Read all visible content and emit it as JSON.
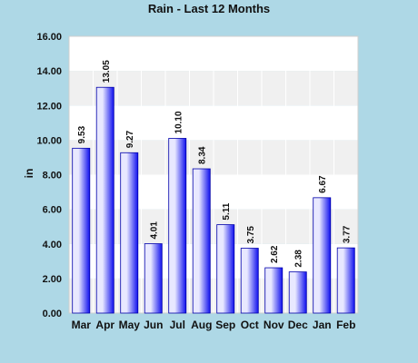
{
  "chart_data": {
    "type": "bar",
    "title": "Rain - Last 12 Months",
    "xlabel": "",
    "ylabel": "in",
    "ylim": [
      0,
      16
    ],
    "y_ticks": [
      "0.00",
      "2.00",
      "4.00",
      "6.00",
      "8.00",
      "10.00",
      "12.00",
      "14.00",
      "16.00"
    ],
    "categories": [
      "Mar",
      "Apr",
      "May",
      "Jun",
      "Jul",
      "Aug",
      "Sep",
      "Oct",
      "Nov",
      "Dec",
      "Jan",
      "Feb"
    ],
    "values": [
      9.53,
      13.05,
      9.27,
      4.01,
      10.1,
      8.34,
      5.11,
      3.75,
      2.62,
      2.38,
      6.67,
      3.77
    ],
    "value_labels": [
      "9.53",
      "13.05",
      "9.27",
      "4.01",
      "10.10",
      "8.34",
      "5.11",
      "3.75",
      "2.62",
      "2.38",
      "6.67",
      "3.77"
    ],
    "grid": true,
    "legend": "none",
    "colors": {
      "background": "#aed8e6",
      "plot_band_light": "#ffffff",
      "plot_band_dark": "#f0f0f0",
      "bar_dark": "#1010ee",
      "bar_light": "#e8e8ff"
    }
  }
}
